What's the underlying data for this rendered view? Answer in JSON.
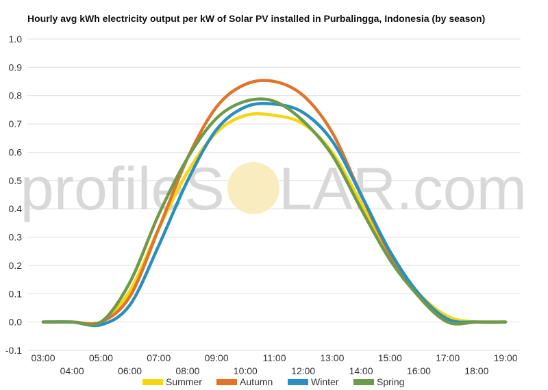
{
  "title": "Hourly avg kWh electricity output per kW of Solar PV installed in Purbalingga, Indonesia (by season)",
  "watermark": {
    "left": "profileS",
    "right": "LAR.com"
  },
  "colors": {
    "Summer": "#f6d511",
    "Autumn": "#e0742a",
    "Winter": "#2a8fc0",
    "Spring": "#6e9a4b",
    "grid": "#dddddd",
    "watermark_sun": "#f9ecbf"
  },
  "chart_data": {
    "type": "line",
    "title": "Hourly avg kWh electricity output per kW of Solar PV installed in Purbalingga, Indonesia (by season)",
    "xlabel": "",
    "ylabel": "",
    "ylim": [
      -0.1,
      1.0
    ],
    "yticks": [
      "-0.1",
      "0.0",
      "0.1",
      "0.2",
      "0.3",
      "0.4",
      "0.5",
      "0.6",
      "0.7",
      "0.8",
      "0.9",
      "1.0"
    ],
    "x": [
      "03:00",
      "04:00",
      "05:00",
      "06:00",
      "07:00",
      "08:00",
      "09:00",
      "10:00",
      "11:00",
      "12:00",
      "13:00",
      "14:00",
      "15:00",
      "16:00",
      "17:00",
      "18:00",
      "19:00"
    ],
    "grid": true,
    "legend": "bottom",
    "series": [
      {
        "name": "Summer",
        "values": [
          0.0,
          0.0,
          0.0,
          0.11,
          0.33,
          0.53,
          0.67,
          0.73,
          0.73,
          0.7,
          0.6,
          0.42,
          0.23,
          0.1,
          0.02,
          0.0,
          0.0
        ]
      },
      {
        "name": "Autumn",
        "values": [
          0.0,
          0.0,
          0.0,
          0.09,
          0.33,
          0.58,
          0.76,
          0.84,
          0.85,
          0.8,
          0.67,
          0.45,
          0.24,
          0.09,
          0.0,
          0.0,
          0.0
        ]
      },
      {
        "name": "Winter",
        "values": [
          0.0,
          0.0,
          -0.01,
          0.06,
          0.27,
          0.5,
          0.68,
          0.76,
          0.77,
          0.74,
          0.64,
          0.45,
          0.25,
          0.1,
          0.01,
          0.0,
          0.0
        ]
      },
      {
        "name": "Spring",
        "values": [
          0.0,
          0.0,
          0.0,
          0.14,
          0.38,
          0.58,
          0.72,
          0.78,
          0.78,
          0.71,
          0.59,
          0.4,
          0.22,
          0.09,
          0.0,
          0.0,
          0.0
        ]
      }
    ]
  }
}
